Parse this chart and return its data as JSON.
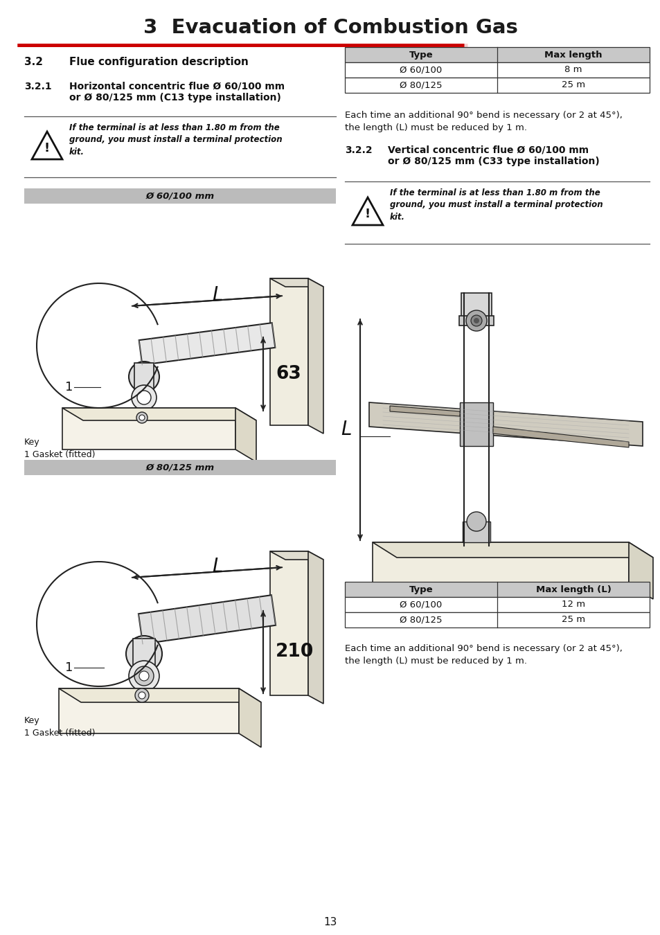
{
  "title": "3  Evacuation of Combustion Gas",
  "title_color": "#1a1a1a",
  "title_fontsize": 22,
  "red_line_color": "#cc0000",
  "background_color": "#ffffff",
  "page_number": "13",
  "section_32_num": "3.2",
  "section_32_title": "Flue configuration description",
  "section_321_num": "3.2.1",
  "section_321_title": "Horizontal concentric flue Ø 60/100 mm\nor Ø 80/125 mm (C13 type installation)",
  "section_322_num": "3.2.2",
  "section_322_title": "Vertical concentric flue Ø 60/100 mm\nor Ø 80/125 mm (C33 type installation)",
  "warning_text_321": "If the terminal is at less than 1.80 m from the\nground, you must install a terminal protection\nkit.",
  "warning_text_322": "If the terminal is at less than 1.80 m from the\nground, you must install a terminal protection\nkit.",
  "table1_headers": [
    "Type",
    "Max length"
  ],
  "table1_rows": [
    [
      "Ø 60/100",
      "8 m"
    ],
    [
      "Ø 80/125",
      "25 m"
    ]
  ],
  "table2_headers": [
    "Type",
    "Max length (L)"
  ],
  "table2_rows": [
    [
      "Ø 60/100",
      "12 m"
    ],
    [
      "Ø 80/125",
      "25 m"
    ]
  ],
  "note_text_1": "Each time an additional 90° bend is necessary (or 2 at 45°),\nthe length (L) must be reduced by 1 m.",
  "note_text_2": "Each time an additional 90° bend is necessary (or 2 at 45°),\nthe length (L) must be reduced by 1 m.",
  "label_60100mm": "Ø 60/100 mm",
  "label_80125mm": "Ø 80/125 mm",
  "key_text": "Key\n1 Gasket (fitted)",
  "table_header_bg": "#c8c8c8",
  "table_border_color": "#333333",
  "label_bar_bg": "#bbbbbb",
  "warn_line_color": "#555555",
  "diagram_line": "#222222",
  "diagram_fill_light": "#f5f5f5",
  "diagram_fill_box": "#e8e5dc",
  "diagram_fill_dark": "#c0c0c0",
  "diagram_hatch_color": "#888888"
}
